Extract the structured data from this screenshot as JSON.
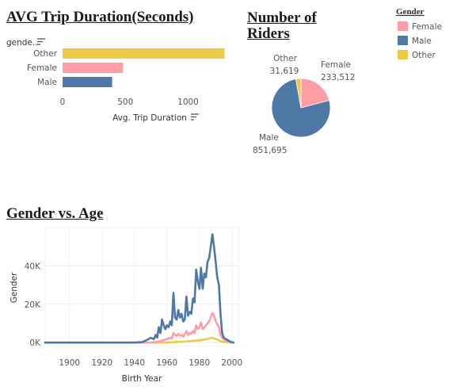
{
  "titles": {
    "bar": "AVG Trip Duration(Seconds)",
    "pie": "Number of Riders",
    "line": "Gender vs. Age"
  },
  "legend": {
    "title": "Gender",
    "items": [
      {
        "label": "Female",
        "color": "#ff9da7"
      },
      {
        "label": "Male",
        "color": "#4e79a7"
      },
      {
        "label": "Other",
        "color": "#edc948"
      }
    ]
  },
  "icons": {
    "bar_header_sort": "sort-descending-icon",
    "bar_axis_sort": "sort-icon"
  },
  "chart_data": [
    {
      "type": "bar",
      "orientation": "horizontal",
      "title": "AVG Trip Duration(Seconds)",
      "row_header": "gende..",
      "categories": [
        "Other",
        "Female",
        "Male"
      ],
      "values": [
        1290,
        480,
        395
      ],
      "colors": [
        "#edc948",
        "#ff9da7",
        "#4e79a7"
      ],
      "xlabel": "Avg. Trip Duration",
      "xlim": [
        0,
        1350
      ],
      "xticks": [
        0,
        500,
        1000
      ],
      "tick_labels": [
        "0",
        "500",
        "1000"
      ]
    },
    {
      "type": "pie",
      "title": "Number of Riders",
      "slices": [
        {
          "label": "Female",
          "value": 233512,
          "value_label": "233,512",
          "color": "#ff9da7"
        },
        {
          "label": "Male",
          "value": 851695,
          "value_label": "851,695",
          "color": "#4e79a7"
        },
        {
          "label": "Other",
          "value": 31619,
          "value_label": "31,619",
          "color": "#edc948"
        }
      ]
    },
    {
      "type": "line",
      "title": "Gender vs. Age",
      "xlabel": "Birth Year",
      "ylabel": "Gender",
      "xlim": [
        1885,
        2004
      ],
      "ylim": [
        -2000,
        60000
      ],
      "xticks": [
        1900,
        1920,
        1940,
        1960,
        1980,
        2000
      ],
      "xtick_labels": [
        "1900",
        "1920",
        "1940",
        "1960",
        "1980",
        "2000"
      ],
      "yticks": [
        0,
        20000,
        40000
      ],
      "ytick_labels": [
        "0K",
        "20K",
        "40K"
      ],
      "grid": true,
      "series": [
        {
          "name": "Male",
          "color": "#4e79a7",
          "points": [
            [
              1885,
              0
            ],
            [
              1940,
              0
            ],
            [
              1945,
              300
            ],
            [
              1948,
              1500
            ],
            [
              1950,
              2500
            ],
            [
              1952,
              1800
            ],
            [
              1953,
              4000
            ],
            [
              1954,
              2500
            ],
            [
              1955,
              8000
            ],
            [
              1956,
              5000
            ],
            [
              1957,
              12000
            ],
            [
              1958,
              9000
            ],
            [
              1959,
              7000
            ],
            [
              1960,
              9000
            ],
            [
              1961,
              8000
            ],
            [
              1962,
              11000
            ],
            [
              1963,
              9000
            ],
            [
              1964,
              26000
            ],
            [
              1965,
              13000
            ],
            [
              1966,
              12000
            ],
            [
              1967,
              17000
            ],
            [
              1968,
              13000
            ],
            [
              1969,
              15000
            ],
            [
              1970,
              11000
            ],
            [
              1971,
              12000
            ],
            [
              1972,
              24000
            ],
            [
              1973,
              14000
            ],
            [
              1974,
              16000
            ],
            [
              1975,
              15000
            ],
            [
              1976,
              23000
            ],
            [
              1977,
              21000
            ],
            [
              1978,
              38000
            ],
            [
              1979,
              32000
            ],
            [
              1980,
              28000
            ],
            [
              1981,
              39000
            ],
            [
              1982,
              28000
            ],
            [
              1983,
              36000
            ],
            [
              1984,
              34000
            ],
            [
              1985,
              42000
            ],
            [
              1986,
              44000
            ],
            [
              1987,
              50000
            ],
            [
              1988,
              56500
            ],
            [
              1989,
              50000
            ],
            [
              1990,
              42000
            ],
            [
              1991,
              34000
            ],
            [
              1992,
              30000
            ],
            [
              1993,
              15000
            ],
            [
              1994,
              5000
            ],
            [
              1995,
              2500
            ],
            [
              1997,
              1500
            ],
            [
              1999,
              500
            ],
            [
              2001,
              0
            ]
          ]
        },
        {
          "name": "Female",
          "color": "#ff9da7",
          "points": [
            [
              1885,
              0
            ],
            [
              1950,
              0
            ],
            [
              1955,
              600
            ],
            [
              1960,
              1800
            ],
            [
              1962,
              2500
            ],
            [
              1963,
              2000
            ],
            [
              1964,
              5000
            ],
            [
              1965,
              4000
            ],
            [
              1966,
              3500
            ],
            [
              1967,
              4500
            ],
            [
              1968,
              3500
            ],
            [
              1969,
              4000
            ],
            [
              1970,
              3000
            ],
            [
              1972,
              6000
            ],
            [
              1973,
              4000
            ],
            [
              1974,
              5000
            ],
            [
              1975,
              4500
            ],
            [
              1976,
              6000
            ],
            [
              1977,
              5000
            ],
            [
              1978,
              9000
            ],
            [
              1979,
              7000
            ],
            [
              1980,
              8000
            ],
            [
              1981,
              10500
            ],
            [
              1982,
              7000
            ],
            [
              1983,
              8000
            ],
            [
              1984,
              9000
            ],
            [
              1985,
              10000
            ],
            [
              1986,
              11000
            ],
            [
              1987,
              13000
            ],
            [
              1988,
              15500
            ],
            [
              1989,
              14000
            ],
            [
              1990,
              11000
            ],
            [
              1991,
              9500
            ],
            [
              1992,
              8000
            ],
            [
              1993,
              4000
            ],
            [
              1994,
              2500
            ],
            [
              1996,
              1000
            ],
            [
              1998,
              300
            ],
            [
              2001,
              0
            ]
          ]
        },
        {
          "name": "Other",
          "color": "#edc948",
          "points": [
            [
              1885,
              0
            ],
            [
              1960,
              0
            ],
            [
              1965,
              300
            ],
            [
              1970,
              500
            ],
            [
              1975,
              800
            ],
            [
              1978,
              1000
            ],
            [
              1980,
              1200
            ],
            [
              1983,
              1600
            ],
            [
              1985,
              1800
            ],
            [
              1987,
              2500
            ],
            [
              1989,
              2200
            ],
            [
              1991,
              1500
            ],
            [
              1993,
              800
            ],
            [
              1995,
              300
            ],
            [
              1998,
              100
            ],
            [
              2001,
              0
            ]
          ]
        }
      ]
    }
  ]
}
